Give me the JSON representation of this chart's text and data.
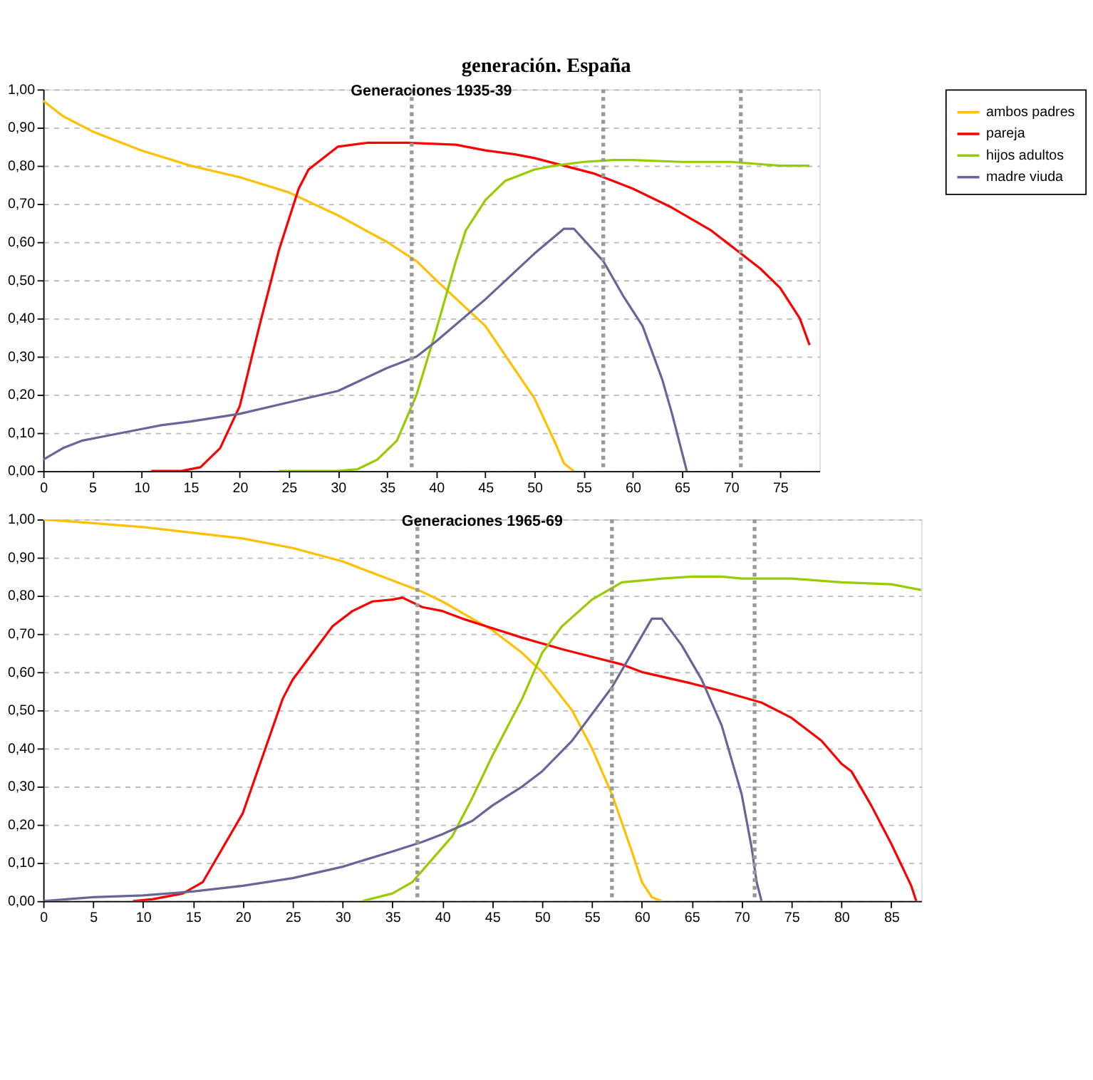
{
  "chart_data": [
    {
      "type": "line",
      "title": "Generaciones 1935-39",
      "annotations": [
        "generación. España"
      ],
      "xlim": [
        0,
        79
      ],
      "xticks": [
        0,
        5,
        10,
        15,
        20,
        25,
        30,
        35,
        40,
        45,
        50,
        55,
        60,
        65,
        70,
        75
      ],
      "ylim": [
        0,
        1
      ],
      "yticks": [
        {
          "value": 0,
          "label": "0,00"
        },
        {
          "value": 0.1,
          "label": "0,10"
        },
        {
          "value": 0.2,
          "label": "0,20"
        },
        {
          "value": 0.3,
          "label": "0,30"
        },
        {
          "value": 0.4,
          "label": "0,40"
        },
        {
          "value": 0.5,
          "label": "0,50"
        },
        {
          "value": 0.6,
          "label": "0,60"
        },
        {
          "value": 0.7,
          "label": "0,70"
        },
        {
          "value": 0.8,
          "label": "0,80"
        },
        {
          "value": 0.9,
          "label": "0,90"
        },
        {
          "value": 1,
          "label": "1,00"
        }
      ],
      "grid": "y",
      "legend": "right",
      "marker": "none",
      "line_style": "solid",
      "ref_lines": [
        {
          "axis": "x",
          "value": 37.5,
          "color": "#999999",
          "line_style": "dotted"
        },
        {
          "axis": "x",
          "value": 57,
          "color": "#999999",
          "line_style": "dotted"
        },
        {
          "axis": "x",
          "value": 71,
          "color": "#999999",
          "line_style": "dotted"
        }
      ],
      "series": [
        {
          "name": "ambos padres",
          "color": "#ffc000",
          "x": [
            0,
            2,
            5,
            10,
            15,
            20,
            25,
            30,
            35,
            38,
            40,
            45,
            50,
            52,
            53,
            54
          ],
          "values": [
            0.97,
            0.93,
            0.89,
            0.84,
            0.8,
            0.77,
            0.73,
            0.67,
            0.6,
            0.55,
            0.5,
            0.38,
            0.19,
            0.08,
            0.02,
            0
          ]
        },
        {
          "name": "pareja",
          "color": "#ff0000",
          "x": [
            11,
            14,
            16,
            18,
            20,
            22,
            24,
            26,
            27,
            30,
            33,
            37,
            42,
            45,
            48,
            50,
            53,
            56,
            60,
            64,
            68,
            71,
            73,
            75,
            77,
            78
          ],
          "values": [
            0,
            0,
            0.01,
            0.06,
            0.17,
            0.38,
            0.58,
            0.74,
            0.79,
            0.85,
            0.86,
            0.86,
            0.855,
            0.84,
            0.83,
            0.82,
            0.8,
            0.78,
            0.74,
            0.69,
            0.63,
            0.57,
            0.53,
            0.48,
            0.4,
            0.33
          ]
        },
        {
          "name": "hijos adultos",
          "color": "#99cc00",
          "x": [
            24,
            30,
            32,
            34,
            36,
            38,
            40,
            42,
            43,
            45,
            47,
            50,
            52,
            55,
            58,
            60,
            65,
            70,
            75,
            78
          ],
          "values": [
            0,
            0,
            0.005,
            0.03,
            0.08,
            0.2,
            0.37,
            0.55,
            0.63,
            0.71,
            0.76,
            0.79,
            0.8,
            0.81,
            0.815,
            0.815,
            0.81,
            0.81,
            0.8,
            0.8
          ]
        },
        {
          "name": "madre viuda",
          "color": "#666699",
          "x": [
            0,
            2,
            4,
            6,
            10,
            12,
            15,
            20,
            25,
            30,
            35,
            38,
            40,
            45,
            50,
            53,
            54,
            57,
            59,
            61,
            63,
            64,
            65,
            65.5
          ],
          "values": [
            0.03,
            0.06,
            0.08,
            0.09,
            0.11,
            0.12,
            0.13,
            0.15,
            0.18,
            0.21,
            0.27,
            0.3,
            0.34,
            0.45,
            0.57,
            0.635,
            0.635,
            0.55,
            0.46,
            0.38,
            0.24,
            0.15,
            0.05,
            0
          ]
        }
      ]
    },
    {
      "type": "line",
      "title": "Generaciones 1965-69",
      "xlim": [
        0,
        88
      ],
      "xticks": [
        0,
        5,
        10,
        15,
        20,
        25,
        30,
        35,
        40,
        45,
        50,
        55,
        60,
        65,
        70,
        75,
        80,
        85
      ],
      "ylim": [
        0,
        1
      ],
      "yticks": [
        {
          "value": 0,
          "label": "0,00"
        },
        {
          "value": 0.1,
          "label": "0,10"
        },
        {
          "value": 0.2,
          "label": "0,20"
        },
        {
          "value": 0.3,
          "label": "0,30"
        },
        {
          "value": 0.4,
          "label": "0,40"
        },
        {
          "value": 0.5,
          "label": "0,50"
        },
        {
          "value": 0.6,
          "label": "0,60"
        },
        {
          "value": 0.7,
          "label": "0,70"
        },
        {
          "value": 0.8,
          "label": "0,80"
        },
        {
          "value": 0.9,
          "label": "0,90"
        },
        {
          "value": 1,
          "label": "1,00"
        }
      ],
      "grid": "y",
      "marker": "none",
      "line_style": "solid",
      "ref_lines": [
        {
          "axis": "x",
          "value": 37.5,
          "color": "#999999",
          "line_style": "dotted"
        },
        {
          "axis": "x",
          "value": 57,
          "color": "#999999",
          "line_style": "dotted"
        },
        {
          "axis": "x",
          "value": 71.3,
          "color": "#999999",
          "line_style": "dotted"
        }
      ],
      "series": [
        {
          "color": "#ffc000",
          "x": [
            0,
            5,
            10,
            15,
            20,
            25,
            30,
            35,
            38,
            40,
            43,
            45,
            48,
            50,
            53,
            55,
            57,
            59,
            60,
            61,
            62
          ],
          "values": [
            1,
            0.99,
            0.98,
            0.965,
            0.95,
            0.925,
            0.89,
            0.84,
            0.81,
            0.785,
            0.74,
            0.71,
            0.65,
            0.6,
            0.5,
            0.4,
            0.28,
            0.13,
            0.05,
            0.01,
            0
          ]
        },
        {
          "color": "#ff0000",
          "x": [
            9,
            11,
            14,
            16,
            18,
            20,
            22,
            24,
            25,
            27,
            29,
            31,
            33,
            35,
            36,
            38,
            40,
            42,
            45,
            48,
            50,
            52,
            55,
            58,
            60,
            65,
            68,
            72,
            75,
            78,
            80,
            81,
            83,
            85,
            87,
            87.5
          ],
          "values": [
            0,
            0.005,
            0.02,
            0.05,
            0.14,
            0.23,
            0.38,
            0.53,
            0.58,
            0.65,
            0.72,
            0.76,
            0.785,
            0.79,
            0.795,
            0.77,
            0.76,
            0.74,
            0.715,
            0.69,
            0.675,
            0.66,
            0.64,
            0.62,
            0.6,
            0.57,
            0.55,
            0.52,
            0.48,
            0.42,
            0.36,
            0.34,
            0.25,
            0.15,
            0.04,
            0
          ]
        },
        {
          "color": "#99cc00",
          "x": [
            32,
            35,
            37,
            39,
            41,
            43,
            45,
            48,
            50,
            52,
            55,
            57,
            58,
            60,
            62,
            65,
            68,
            70,
            75,
            80,
            85,
            88
          ],
          "values": [
            0,
            0.02,
            0.05,
            0.11,
            0.17,
            0.27,
            0.38,
            0.53,
            0.65,
            0.72,
            0.79,
            0.82,
            0.835,
            0.84,
            0.845,
            0.85,
            0.85,
            0.845,
            0.845,
            0.835,
            0.83,
            0.815
          ]
        },
        {
          "color": "#666699",
          "x": [
            0,
            5,
            10,
            15,
            20,
            25,
            30,
            35,
            38,
            40,
            43,
            45,
            48,
            50,
            53,
            55,
            57,
            59,
            61,
            62,
            64,
            66,
            68,
            70,
            71,
            71.5,
            72
          ],
          "values": [
            0,
            0.01,
            0.015,
            0.025,
            0.04,
            0.06,
            0.09,
            0.13,
            0.155,
            0.175,
            0.21,
            0.25,
            0.3,
            0.34,
            0.42,
            0.49,
            0.56,
            0.65,
            0.74,
            0.74,
            0.67,
            0.58,
            0.46,
            0.28,
            0.14,
            0.05,
            0
          ]
        }
      ]
    }
  ]
}
